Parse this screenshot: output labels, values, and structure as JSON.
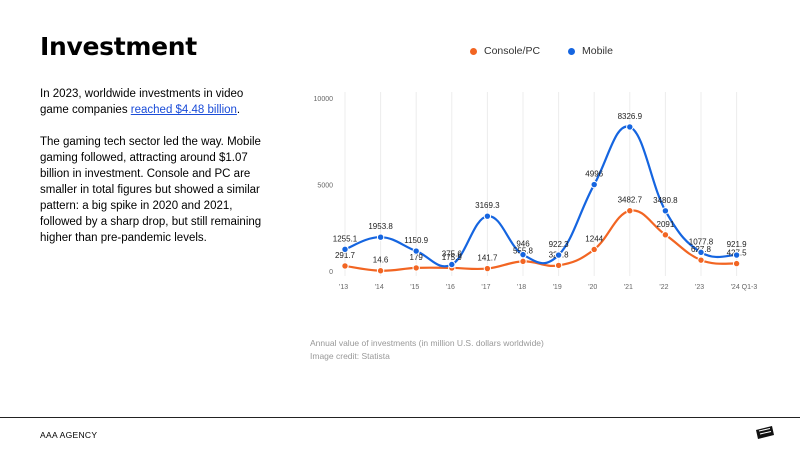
{
  "page": {
    "title": "Investment",
    "paragraph1_pre": "In 2023, worldwide investments in video game companies ",
    "paragraph1_link": "reached $4.48 billion",
    "paragraph1_post": ".",
    "paragraph2": "The gaming tech sector led the way. Mobile gaming followed, attracting around $1.07 billion in investment. Console and PC are smaller in total figures but showed a similar pattern: a big spike in 2020 and 2021, followed by a sharp drop, but still remaining higher than pre-pandemic levels.",
    "caption_line1": "Annual value of investments (in million U.S. dollars worldwide)",
    "caption_line2": "Image credit: Statista",
    "footer_brand": "AAA AGENCY"
  },
  "legend": [
    {
      "label": "Console/PC",
      "color": "#f26522"
    },
    {
      "label": "Mobile",
      "color": "#1565e0"
    }
  ],
  "chart_data": {
    "type": "line",
    "categories": [
      "'13",
      "'14",
      "'15",
      "'16",
      "'17",
      "'18",
      "'19",
      "'20",
      "'21",
      "'22",
      "'23",
      "'24 Q1-3"
    ],
    "series": [
      {
        "name": "Console/PC",
        "color": "#f26522",
        "values": [
          291.7,
          14.6,
          179,
          175.9,
          141.7,
          555.8,
          323.8,
          1244,
          3482.7,
          2091,
          627.8,
          427.5
        ]
      },
      {
        "name": "Mobile",
        "color": "#1565e0",
        "values": [
          1255.1,
          1953.8,
          1150.9,
          375.6,
          3169.3,
          946,
          922.3,
          4996,
          8326.9,
          3480.8,
          1077.8,
          921.9
        ]
      }
    ],
    "yticks": [
      0,
      5000,
      10000
    ],
    "ylim": [
      0,
      10000
    ],
    "grid": "vertical",
    "legend_position": "top"
  }
}
